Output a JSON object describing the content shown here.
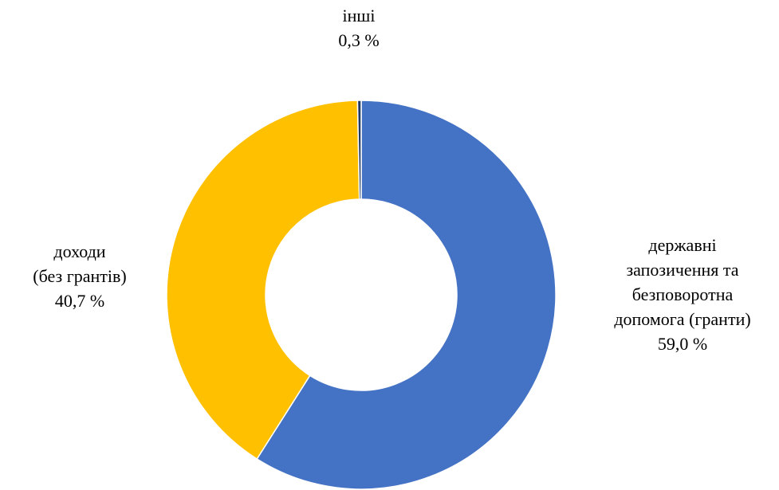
{
  "chart_data": {
    "type": "pie",
    "variant": "donut",
    "title": "",
    "slices": [
      {
        "label_lines": [
          "державні",
          "запозичення та",
          "безповоротна",
          "допомога (гранти)"
        ],
        "value": 59.0,
        "value_label": "59,0 %",
        "color": "#4472C4"
      },
      {
        "label_lines": [
          "доходи",
          "(без грантів)"
        ],
        "value": 40.7,
        "value_label": "40,7 %",
        "color": "#FFC000"
      },
      {
        "label_lines": [
          "інші"
        ],
        "value": 0.3,
        "value_label": "0,3 %",
        "color": "#1F3864"
      }
    ],
    "start_angle": "top",
    "direction": "clockwise",
    "legend": "none"
  }
}
